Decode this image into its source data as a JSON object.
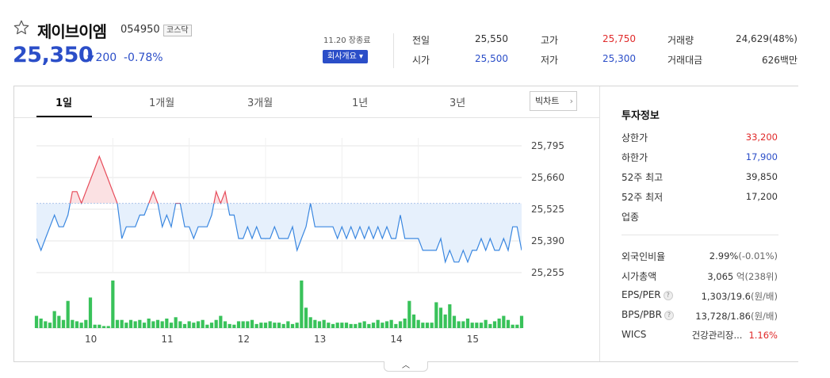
{
  "stock": {
    "name": "제이브이엠",
    "code": "054950",
    "market": "코스닥",
    "price": "25,350",
    "change": "200",
    "change_pct": "-0.78%",
    "time_label": "11.20 장종료",
    "company_btn": "회사개요 ▾"
  },
  "summary": [
    {
      "label": "전일",
      "value": "25,550"
    },
    {
      "label": "고가",
      "value": "25,750",
      "color": "#e02a2a"
    },
    {
      "label": "거래량",
      "value": "24,629(48%)"
    },
    {
      "label": "시가",
      "value": "25,500",
      "color": "#2b4ec8"
    },
    {
      "label": "저가",
      "value": "25,300",
      "color": "#2b4ec8"
    },
    {
      "label": "거래대금",
      "value": "626백만"
    }
  ],
  "tabs": [
    "1일",
    "1개월",
    "3개월",
    "1년",
    "3년"
  ],
  "bigchart_label": "빅차트",
  "panel": {
    "title": "투자정보",
    "rows": [
      {
        "label": "상한가",
        "value": "33,200",
        "color": "#e02a2a"
      },
      {
        "label": "하한가",
        "value": "17,900",
        "color": "#2b4ec8"
      },
      {
        "label": "52주 최고",
        "value": "39,850"
      },
      {
        "label": "52주 최저",
        "value": "17,200"
      },
      {
        "label": "업종",
        "value": ""
      },
      {
        "label": "외국인비율",
        "value": "2.99%",
        "extra": "(-0.01%)"
      },
      {
        "label": "시가총액",
        "value": "3,065",
        "extra": "억(238위)"
      },
      {
        "label": "EPS/PER",
        "value": "1,303/19.6",
        "extra": "(원/배)",
        "help": "?"
      },
      {
        "label": "BPS/PBR",
        "value": "13,728/1.86",
        "extra": "(원/배)",
        "help": "?"
      },
      {
        "label": "WICS",
        "value": "건강관리장...",
        "extra2": "1.16%"
      }
    ]
  },
  "chart_data": {
    "type": "line",
    "reference": 25550,
    "y_ticks": [
      25795,
      25660,
      25525,
      25390,
      25255
    ],
    "y_tick_labels": [
      "25,795",
      "25,660",
      "25,525",
      "25,390",
      "25,255"
    ],
    "x_tick_labels": [
      "10",
      "11",
      "12",
      "13",
      "14",
      "15"
    ],
    "ylim": [
      25255,
      25795
    ],
    "price": [
      25400,
      25350,
      25400,
      25450,
      25500,
      25450,
      25450,
      25500,
      25600,
      25600,
      25550,
      25600,
      25650,
      25700,
      25750,
      25700,
      25650,
      25600,
      25550,
      25400,
      25450,
      25450,
      25450,
      25500,
      25500,
      25550,
      25600,
      25550,
      25450,
      25500,
      25450,
      25550,
      25550,
      25450,
      25450,
      25400,
      25450,
      25450,
      25450,
      25500,
      25600,
      25550,
      25600,
      25500,
      25500,
      25400,
      25400,
      25450,
      25400,
      25450,
      25400,
      25400,
      25400,
      25450,
      25400,
      25400,
      25400,
      25450,
      25350,
      25400,
      25450,
      25550,
      25450,
      25450,
      25450,
      25450,
      25450,
      25400,
      25450,
      25400,
      25450,
      25400,
      25450,
      25400,
      25450,
      25400,
      25450,
      25400,
      25450,
      25400,
      25400,
      25500,
      25400,
      25400,
      25400,
      25400,
      25350,
      25350,
      25350,
      25350,
      25400,
      25300,
      25350,
      25300,
      25300,
      25350,
      25300,
      25350,
      25350,
      25400,
      25350,
      25400,
      25350,
      25350,
      25400,
      25350,
      25450,
      25450,
      25350
    ],
    "volume": [
      18,
      14,
      10,
      8,
      25,
      18,
      12,
      40,
      12,
      10,
      8,
      12,
      45,
      5,
      5,
      3,
      3,
      70,
      12,
      12,
      8,
      12,
      10,
      12,
      8,
      14,
      10,
      12,
      10,
      14,
      8,
      16,
      10,
      6,
      10,
      8,
      10,
      12,
      5,
      8,
      12,
      18,
      10,
      6,
      5,
      10,
      10,
      10,
      12,
      6,
      8,
      8,
      10,
      8,
      8,
      6,
      10,
      6,
      8,
      70,
      30,
      16,
      12,
      10,
      12,
      8,
      6,
      8,
      8,
      8,
      6,
      6,
      8,
      10,
      6,
      8,
      12,
      8,
      10,
      12,
      6,
      10,
      14,
      40,
      20,
      12,
      8,
      8,
      8,
      38,
      30,
      20,
      35,
      18,
      10,
      10,
      14,
      8,
      8,
      8,
      12,
      6,
      10,
      14,
      18,
      12,
      5,
      5,
      18
    ]
  }
}
